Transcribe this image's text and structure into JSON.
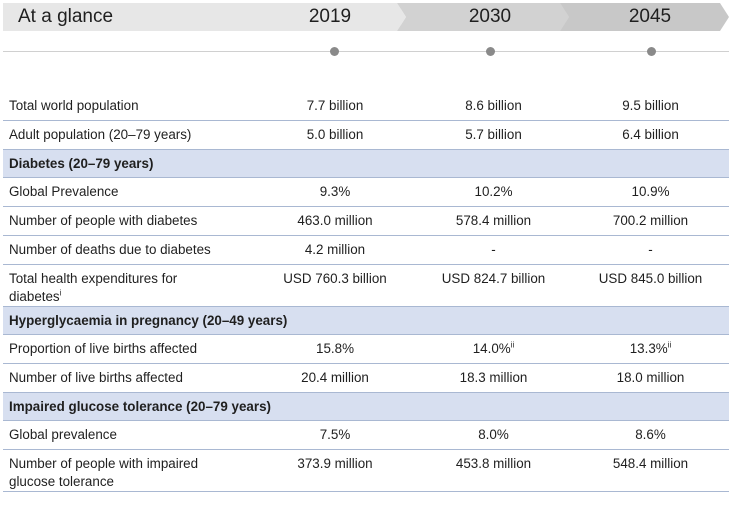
{
  "header": {
    "title": "At a glance",
    "years": [
      "2019",
      "2030",
      "2045"
    ]
  },
  "rows": {
    "world_pop": {
      "label": "Total world population",
      "values": [
        "7.7 billion",
        "8.6 billion",
        "9.5 billion"
      ]
    },
    "adult_pop": {
      "label": "Adult population (20–79 years)",
      "values": [
        "5.0 billion",
        "5.7 billion",
        "6.4 billion"
      ]
    },
    "sec_diabetes": {
      "label": "Diabetes (20–79 years)"
    },
    "global_prev": {
      "label": "Global Prevalence",
      "values": [
        "9.3%",
        "10.2%",
        "10.9%"
      ]
    },
    "num_diabetes": {
      "label": "Number of people with diabetes",
      "values": [
        "463.0 million",
        "578.4 million",
        "700.2 million"
      ]
    },
    "deaths": {
      "label": "Number of deaths due to diabetes",
      "values": [
        "4.2 million",
        "-",
        "-"
      ]
    },
    "expend": {
      "label_line1": "Total health expenditures for",
      "label_line2": "diabetes",
      "label_sup": "i",
      "values": [
        "USD 760.3 billion",
        "USD 824.7 billion",
        "USD 845.0 billion"
      ]
    },
    "sec_hip": {
      "label": "Hyperglycaemia in pregnancy (20–49 years)"
    },
    "prop_births": {
      "label": "Proportion of live births affected",
      "values": [
        "15.8%",
        "14.0%",
        "13.3%"
      ],
      "sups": [
        "",
        "ii",
        "ii"
      ]
    },
    "num_births": {
      "label": "Number of live births affected",
      "values": [
        "20.4 million",
        "18.3 million",
        "18.0 million"
      ]
    },
    "sec_igt": {
      "label": "Impaired glucose tolerance (20–79 years)"
    },
    "igt_prev": {
      "label": "Global prevalence",
      "values": [
        "7.5%",
        "8.0%",
        "8.6%"
      ]
    },
    "num_igt": {
      "label_line1": "Number of people with impaired",
      "label_line2": "glucose tolerance",
      "values": [
        "373.9 million",
        "453.8 million",
        "548.4 million"
      ]
    }
  },
  "colors": {
    "section_bg": "#d7dff0",
    "header_bg": "#e7e7e7",
    "chevron": "#c8c8c8"
  }
}
